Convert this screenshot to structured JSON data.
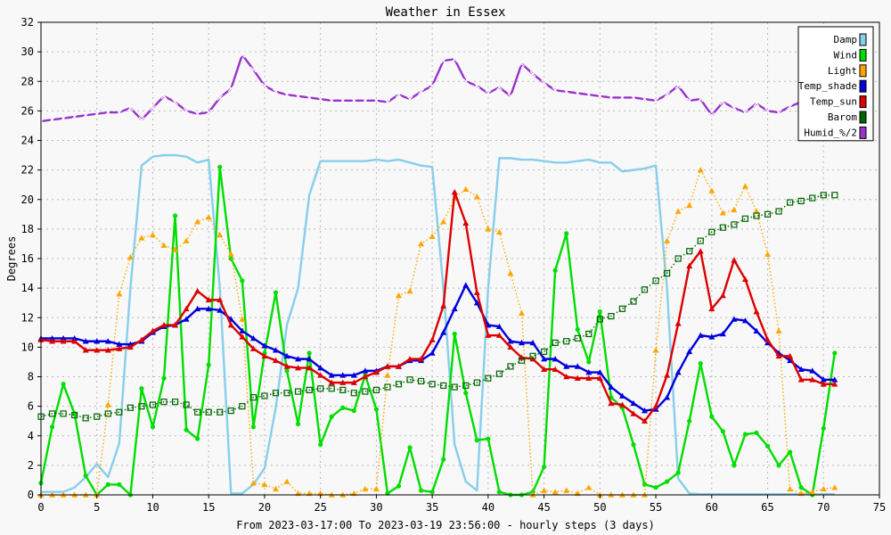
{
  "chart_data": {
    "type": "line",
    "title": "Weather in Essex",
    "xlabel": "From 2023-03-17:00 To 2023-03-19 23:56:00 - hourly steps (3 days)",
    "ylabel": "Degrees",
    "xlim": [
      0,
      75
    ],
    "ylim": [
      0,
      32
    ],
    "xticks": [
      0,
      5,
      10,
      15,
      20,
      25,
      30,
      35,
      40,
      45,
      50,
      55,
      60,
      65,
      70,
      75
    ],
    "yticks": [
      0,
      2,
      4,
      6,
      8,
      10,
      12,
      14,
      16,
      18,
      20,
      22,
      24,
      26,
      28,
      30,
      32
    ],
    "grid": true,
    "legend_position": "top-right",
    "x": [
      0,
      1,
      2,
      3,
      4,
      5,
      6,
      7,
      8,
      9,
      10,
      11,
      12,
      13,
      14,
      15,
      16,
      17,
      18,
      19,
      20,
      21,
      22,
      23,
      24,
      25,
      26,
      27,
      28,
      29,
      30,
      31,
      32,
      33,
      34,
      35,
      36,
      37,
      38,
      39,
      40,
      41,
      42,
      43,
      44,
      45,
      46,
      47,
      48,
      49,
      50,
      51,
      52,
      53,
      54,
      55,
      56,
      57,
      58,
      59,
      60,
      61,
      62,
      63,
      64,
      65,
      66,
      67,
      68,
      69,
      70,
      71
    ],
    "series": [
      {
        "name": "Damp",
        "color": "#87ceeb",
        "marker": "none",
        "style": "solid",
        "values": [
          0.2,
          0.2,
          0.2,
          0.5,
          1.2,
          2.1,
          1.2,
          3.5,
          14,
          22.3,
          22.9,
          23,
          23,
          22.9,
          22.5,
          22.7,
          14,
          0.1,
          0.1,
          0.7,
          1.8,
          5.9,
          11.5,
          14,
          20.3,
          22.6,
          22.6,
          22.6,
          22.6,
          22.6,
          22.7,
          22.6,
          22.7,
          22.5,
          22.3,
          22.2,
          14,
          3.4,
          0.9,
          0.3,
          14,
          22.8,
          22.8,
          22.7,
          22.7,
          22.6,
          22.5,
          22.5,
          22.6,
          22.7,
          22.5,
          22.5,
          21.9,
          22,
          22.1,
          22.3,
          14,
          1.1,
          0.1,
          0.05,
          0.05,
          0.05,
          0.05,
          0.05,
          0.05,
          0.05,
          0.05,
          0.05,
          0.05,
          0.05,
          0.05,
          0.05
        ]
      },
      {
        "name": "Wind",
        "color": "#00dd00",
        "marker": "circle",
        "style": "solid",
        "values": [
          0.8,
          4.6,
          7.5,
          5.5,
          1.3,
          0,
          0.7,
          0.7,
          0,
          7.2,
          4.6,
          7.9,
          18.9,
          4.4,
          3.8,
          8.8,
          22.2,
          16,
          14.5,
          4.6,
          9.6,
          13.7,
          8.4,
          4.8,
          9.6,
          3.4,
          5.3,
          5.9,
          5.7,
          8.1,
          5.8,
          0.1,
          0.6,
          3.2,
          0.3,
          0.2,
          2.4,
          10.9,
          6.9,
          3.7,
          3.8,
          0.2,
          0,
          0,
          0.2,
          1.9,
          15.2,
          17.7,
          11.2,
          9,
          12.4,
          6.6,
          5.9,
          3.4,
          0.7,
          0.5,
          0.9,
          1.5,
          5,
          8.9,
          5.3,
          4.3,
          2,
          4.1,
          4.2,
          3.3,
          2,
          2.9,
          0.5,
          0,
          4.5,
          9.6
        ]
      },
      {
        "name": "Light",
        "color": "#ffa500",
        "marker": "triangle",
        "style": "dotted",
        "values": [
          0,
          0,
          0,
          0,
          0,
          0,
          6.1,
          13.6,
          16.1,
          17.4,
          17.6,
          16.9,
          16.6,
          17.2,
          18.5,
          18.8,
          17.6,
          16.3,
          11.9,
          0.8,
          0.7,
          0.4,
          0.9,
          0.1,
          0.1,
          0.1,
          0,
          0,
          0.1,
          0.4,
          0.4,
          8.1,
          13.5,
          13.8,
          17,
          17.5,
          18.5,
          20.1,
          20.7,
          20.2,
          18,
          17.8,
          15,
          12.3,
          0,
          0.3,
          0.2,
          0.3,
          0.1,
          0.5,
          0,
          0,
          0,
          0,
          0,
          9.8,
          17.2,
          19.2,
          19.6,
          22,
          20.6,
          19.1,
          19.3,
          20.9,
          19.2,
          16.3,
          11.1,
          0.4,
          0.1,
          0.2,
          0.4,
          0.5
        ]
      },
      {
        "name": "Temp_shade",
        "color": "#0000dd",
        "marker": "triangle",
        "style": "solid",
        "values": [
          10.6,
          10.6,
          10.6,
          10.6,
          10.4,
          10.4,
          10.4,
          10.2,
          10.2,
          10.4,
          11,
          11.4,
          11.5,
          11.9,
          12.6,
          12.6,
          12.5,
          11.9,
          11.1,
          10.6,
          10.1,
          9.8,
          9.4,
          9.2,
          9.2,
          8.6,
          8.1,
          8.1,
          8.1,
          8.4,
          8.4,
          8.7,
          8.7,
          9.1,
          9.1,
          9.6,
          11,
          12.6,
          14.2,
          13,
          11.5,
          11.4,
          10.4,
          10.3,
          10.3,
          9.2,
          9.2,
          8.7,
          8.7,
          8.3,
          8.3,
          7.3,
          6.7,
          6.2,
          5.7,
          5.8,
          6.6,
          8.3,
          9.7,
          10.8,
          10.7,
          10.9,
          11.9,
          11.8,
          11.1,
          10.3,
          9.6,
          9.1,
          8.5,
          8.4,
          7.8,
          7.8
        ]
      },
      {
        "name": "Temp_sun",
        "color": "#dd0000",
        "marker": "triangle",
        "style": "solid",
        "values": [
          10.5,
          10.4,
          10.4,
          10.4,
          9.8,
          9.8,
          9.8,
          9.9,
          10,
          10.5,
          11.1,
          11.5,
          11.5,
          12.6,
          13.8,
          13.2,
          13.2,
          11.5,
          10.7,
          9.9,
          9.4,
          9.1,
          8.7,
          8.6,
          8.6,
          8.1,
          7.6,
          7.6,
          7.6,
          8,
          8.3,
          8.7,
          8.7,
          9.2,
          9.2,
          10.5,
          12.8,
          20.5,
          18.4,
          13.7,
          10.8,
          10.8,
          10,
          9.3,
          9.2,
          8.5,
          8.5,
          8,
          7.9,
          7.9,
          7.9,
          6.2,
          6.1,
          5.5,
          5,
          6,
          8.1,
          11.6,
          15.5,
          16.5,
          12.6,
          13.5,
          15.9,
          14.6,
          12.4,
          10.5,
          9.4,
          9.4,
          7.8,
          7.8,
          7.5,
          7.5
        ]
      },
      {
        "name": "Barom",
        "color": "#006400",
        "marker": "square",
        "style": "dotted",
        "values": [
          5.3,
          5.5,
          5.5,
          5.4,
          5.2,
          5.3,
          5.5,
          5.6,
          5.9,
          6,
          6.1,
          6.3,
          6.3,
          6.1,
          5.6,
          5.6,
          5.6,
          5.7,
          6,
          6.6,
          6.7,
          6.9,
          6.9,
          7,
          7.1,
          7.2,
          7.2,
          7.1,
          6.9,
          7,
          7.1,
          7.3,
          7.5,
          7.8,
          7.7,
          7.5,
          7.4,
          7.3,
          7.4,
          7.6,
          7.9,
          8.2,
          8.7,
          9.1,
          9.4,
          9.7,
          10.3,
          10.4,
          10.6,
          10.9,
          11.9,
          12.1,
          12.6,
          13.1,
          13.9,
          14.5,
          15,
          16,
          16.5,
          17.2,
          17.8,
          18.1,
          18.3,
          18.7,
          18.9,
          19,
          19.2,
          19.8,
          19.9,
          20.1,
          20.3,
          20.3
        ]
      },
      {
        "name": "Humid_%/2",
        "color": "#9933cc",
        "marker": "x",
        "style": "solid",
        "values": [
          25.3,
          25.4,
          25.5,
          25.6,
          25.7,
          25.8,
          25.9,
          25.9,
          26.2,
          25.4,
          26.2,
          27,
          26.6,
          26,
          25.8,
          25.9,
          26.9,
          27.5,
          29.8,
          28.8,
          27.7,
          27.3,
          27.1,
          27,
          26.9,
          26.8,
          26.7,
          26.7,
          26.7,
          26.7,
          26.7,
          26.6,
          27.1,
          26.8,
          27.3,
          27.7,
          29.4,
          29.5,
          28,
          27.7,
          27.2,
          27.6,
          27,
          29.2,
          28.5,
          27.9,
          27.4,
          27.3,
          27.2,
          27.1,
          27,
          26.9,
          26.9,
          26.9,
          26.8,
          26.7,
          27.1,
          27.7,
          26.7,
          26.8,
          25.7,
          26.6,
          26.2,
          25.9,
          26.5,
          26,
          25.9,
          26.3,
          26.6,
          26.8,
          26.9,
          27
        ]
      }
    ]
  }
}
